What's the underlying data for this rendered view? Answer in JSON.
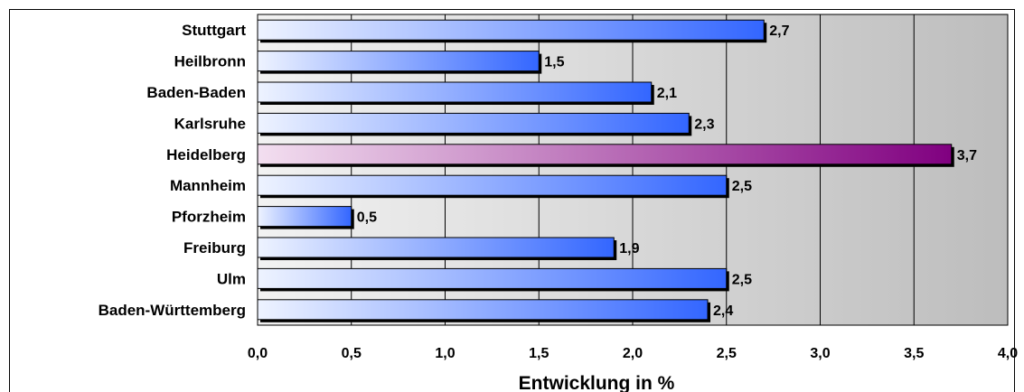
{
  "chart_data": {
    "type": "bar",
    "orientation": "horizontal",
    "categories": [
      "Stuttgart",
      "Heilbronn",
      "Baden-Baden",
      "Karlsruhe",
      "Heidelberg",
      "Mannheim",
      "Pforzheim",
      "Freiburg",
      "Ulm",
      "Baden-Württemberg"
    ],
    "values": [
      2.7,
      1.5,
      2.1,
      2.3,
      3.7,
      2.5,
      0.5,
      1.9,
      2.5,
      2.4
    ],
    "value_labels": [
      "2,7",
      "1,5",
      "2,1",
      "2,3",
      "3,7",
      "2,5",
      "0,5",
      "1,9",
      "2,5",
      "2,4"
    ],
    "highlight_index": 4,
    "xlabel": "Entwicklung in %",
    "xlim": [
      0,
      4
    ],
    "xticks": [
      0,
      0.5,
      1,
      1.5,
      2,
      2.5,
      3,
      3.5,
      4
    ],
    "xtick_labels": [
      "0,0",
      "0,5",
      "1,0",
      "1,5",
      "2,0",
      "2,5",
      "3,0",
      "3,5",
      "4,0"
    ],
    "grid": true,
    "legend": "none",
    "colors": {
      "bar_start": "#eef3ff",
      "bar_end": "#3366ff",
      "highlight_start": "#f3dff0",
      "highlight_end": "#800080",
      "plot_bg_start": "#f2f2f2",
      "plot_bg_end": "#bdbdbd"
    }
  }
}
